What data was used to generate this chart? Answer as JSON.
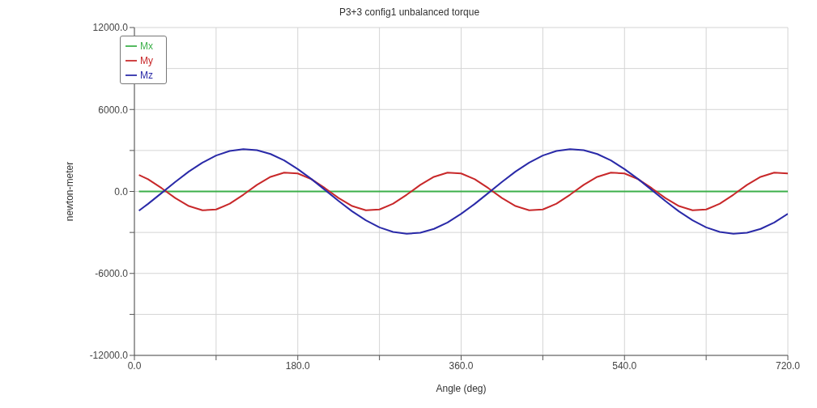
{
  "chart_data": {
    "type": "line",
    "title": "P3+3 config1 unbalanced torque",
    "xlabel": "Angle (deg)",
    "ylabel": "newton-meter",
    "x": [
      5,
      15,
      30,
      45,
      60,
      75,
      90,
      105,
      120,
      135,
      150,
      165,
      180,
      195,
      210,
      225,
      240,
      255,
      270,
      285,
      300,
      315,
      330,
      345,
      360,
      375,
      390,
      405,
      420,
      435,
      450,
      465,
      480,
      495,
      510,
      525,
      540,
      555,
      570,
      585,
      600,
      615,
      630,
      645,
      660,
      675,
      690,
      705,
      720
    ],
    "series": [
      {
        "name": "Mx",
        "color": "#3cb04a",
        "values": [
          0,
          0,
          0,
          0,
          0,
          0,
          0,
          0,
          0,
          0,
          0,
          0,
          0,
          0,
          0,
          0,
          0,
          0,
          0,
          0,
          0,
          0,
          0,
          0,
          0,
          0,
          0,
          0,
          0,
          0,
          0,
          0,
          0,
          0,
          0,
          0,
          0,
          0,
          0,
          0,
          0,
          0,
          0,
          0,
          0,
          0,
          0,
          0,
          0
        ]
      },
      {
        "name": "My",
        "color": "#c8282a",
        "values": [
          1210,
          900,
          240,
          -480,
          -1070,
          -1380,
          -1320,
          -900,
          -240,
          480,
          1070,
          1380,
          1320,
          900,
          240,
          -480,
          -1070,
          -1380,
          -1320,
          -900,
          -240,
          480,
          1070,
          1380,
          1320,
          900,
          240,
          -480,
          -1070,
          -1380,
          -1320,
          -900,
          -240,
          480,
          1070,
          1380,
          1320,
          900,
          240,
          -480,
          -1070,
          -1380,
          -1320,
          -900,
          -240,
          480,
          1070,
          1380,
          1320
        ]
      },
      {
        "name": "Mz",
        "color": "#2a2aa8",
        "values": [
          -1410,
          -910,
          -110,
          700,
          1460,
          2110,
          2630,
          2960,
          3100,
          3020,
          2740,
          2270,
          1640,
          910,
          110,
          -700,
          -1460,
          -2110,
          -2630,
          -2960,
          -3100,
          -3020,
          -2740,
          -2270,
          -1640,
          -910,
          -110,
          700,
          1460,
          2110,
          2630,
          2960,
          3100,
          3020,
          2740,
          2270,
          1640,
          910,
          110,
          -700,
          -1460,
          -2110,
          -2630,
          -2960,
          -3100,
          -3020,
          -2740,
          -2270,
          -1640
        ]
      }
    ],
    "xlim": [
      0,
      720
    ],
    "xticks": [
      {
        "value": 0,
        "label": "0.0"
      },
      {
        "value": 90,
        "label": null
      },
      {
        "value": 180,
        "label": "180.0"
      },
      {
        "value": 270,
        "label": null
      },
      {
        "value": 360,
        "label": "360.0"
      },
      {
        "value": 450,
        "label": null
      },
      {
        "value": 540,
        "label": "540.0"
      },
      {
        "value": 630,
        "label": null
      },
      {
        "value": 720,
        "label": "720.0"
      }
    ],
    "ylim": [
      -12000,
      12000
    ],
    "yticks": [
      {
        "value": -12000,
        "label": "-12000.0"
      },
      {
        "value": -9000,
        "label": null
      },
      {
        "value": -6000,
        "label": "-6000.0"
      },
      {
        "value": -3000,
        "label": null
      },
      {
        "value": 0,
        "label": "0.0"
      },
      {
        "value": 3000,
        "label": null
      },
      {
        "value": 6000,
        "label": "6000.0"
      },
      {
        "value": 9000,
        "label": null
      },
      {
        "value": 12000,
        "label": "12000.0"
      }
    ],
    "grid": true,
    "legend": "top left",
    "marker": "none",
    "line_style": "solid"
  }
}
